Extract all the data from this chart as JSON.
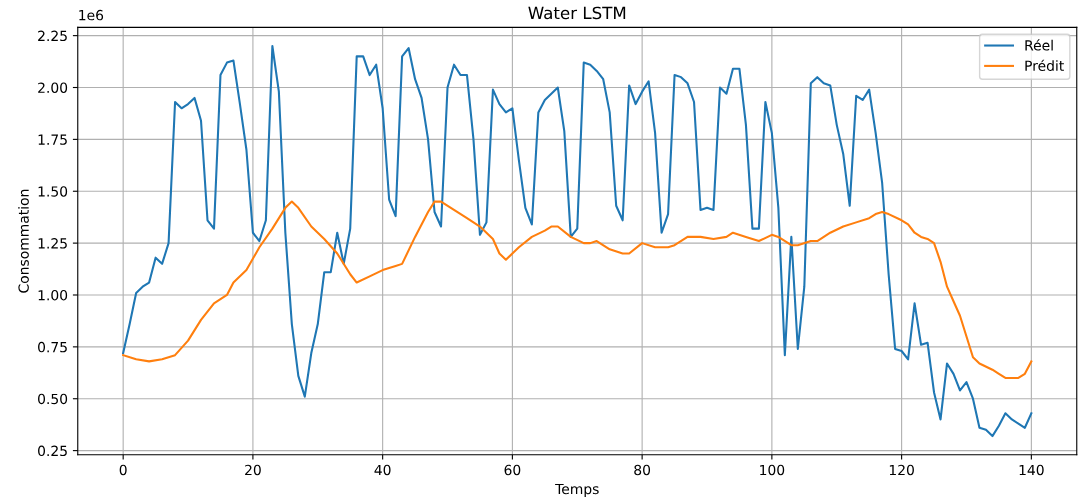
{
  "chart_data": {
    "type": "line",
    "title": "Water LSTM",
    "xlabel": "Temps",
    "ylabel": "Consommation",
    "annotations": [
      "1e6"
    ],
    "xlim": [
      -7,
      147
    ],
    "xticks": [
      0,
      20,
      40,
      60,
      80,
      100,
      120,
      140
    ],
    "ylim": [
      0.23,
      2.29
    ],
    "yticks": [
      {
        "value": 0.25,
        "label": "0.25"
      },
      {
        "value": 0.5,
        "label": "0.50"
      },
      {
        "value": 0.75,
        "label": "0.75"
      },
      {
        "value": 1.0,
        "label": "1.00"
      },
      {
        "value": 1.25,
        "label": "1.25"
      },
      {
        "value": 1.5,
        "label": "1.50"
      },
      {
        "value": 1.75,
        "label": "1.75"
      },
      {
        "value": 2.0,
        "label": "2.00"
      },
      {
        "value": 2.25,
        "label": "2.25"
      }
    ],
    "grid": true,
    "legend": "top right",
    "marker": "none",
    "line_style": "solid",
    "series": [
      {
        "name": "Réel",
        "color": "#1f77b4",
        "x": [
          0,
          1,
          2,
          3,
          4,
          5,
          6,
          7,
          8,
          9,
          10,
          11,
          12,
          13,
          14,
          15,
          16,
          17,
          18,
          19,
          20,
          21,
          22,
          23,
          24,
          25,
          26,
          27,
          28,
          29,
          30,
          31,
          32,
          33,
          34,
          35,
          36,
          37,
          38,
          39,
          40,
          41,
          42,
          43,
          44,
          45,
          46,
          47,
          48,
          49,
          50,
          51,
          52,
          53,
          54,
          55,
          56,
          57,
          58,
          59,
          60,
          61,
          62,
          63,
          64,
          65,
          66,
          67,
          68,
          69,
          70,
          71,
          72,
          73,
          74,
          75,
          76,
          77,
          78,
          79,
          80,
          81,
          82,
          83,
          84,
          85,
          86,
          87,
          88,
          89,
          90,
          91,
          92,
          93,
          94,
          95,
          96,
          97,
          98,
          99,
          100,
          101,
          102,
          103,
          104,
          105,
          106,
          107,
          108,
          109,
          110,
          111,
          112,
          113,
          114,
          115,
          116,
          117,
          118,
          119,
          120,
          121,
          122,
          123,
          124,
          125,
          126,
          127,
          128,
          129,
          130,
          131,
          132,
          133,
          134,
          135,
          136,
          137,
          138,
          139,
          140
        ],
        "values": [
          0.72,
          0.86,
          1.01,
          1.04,
          1.06,
          1.18,
          1.15,
          1.25,
          1.93,
          1.9,
          1.92,
          1.95,
          1.84,
          1.36,
          1.32,
          2.06,
          2.12,
          2.13,
          1.92,
          1.7,
          1.3,
          1.26,
          1.36,
          2.2,
          1.98,
          1.3,
          0.86,
          0.61,
          0.51,
          0.72,
          0.86,
          1.11,
          1.11,
          1.3,
          1.15,
          1.32,
          2.15,
          2.15,
          2.06,
          2.11,
          1.9,
          1.46,
          1.38,
          2.15,
          2.19,
          2.04,
          1.95,
          1.75,
          1.4,
          1.33,
          2.0,
          2.11,
          2.06,
          2.06,
          1.75,
          1.29,
          1.35,
          1.99,
          1.92,
          1.88,
          1.9,
          1.65,
          1.42,
          1.34,
          1.88,
          1.94,
          1.97,
          2.0,
          1.79,
          1.28,
          1.32,
          2.12,
          2.11,
          2.08,
          2.04,
          1.88,
          1.43,
          1.36,
          2.01,
          1.92,
          1.98,
          2.03,
          1.78,
          1.3,
          1.39,
          2.06,
          2.05,
          2.02,
          1.93,
          1.41,
          1.42,
          1.41,
          2.0,
          1.97,
          2.09,
          2.09,
          1.82,
          1.32,
          1.32,
          1.93,
          1.78,
          1.42,
          0.71,
          1.28,
          0.74,
          1.04,
          2.02,
          2.05,
          2.02,
          2.01,
          1.82,
          1.68,
          1.43,
          1.96,
          1.94,
          1.99,
          1.78,
          1.54,
          1.1,
          0.74,
          0.73,
          0.69,
          0.96,
          0.76,
          0.77,
          0.53,
          0.4,
          0.67,
          0.62,
          0.54,
          0.58,
          0.5,
          0.36,
          0.35,
          0.32,
          0.37,
          0.43,
          0.4,
          0.38,
          0.36,
          0.43
        ]
      },
      {
        "name": "Prédit",
        "color": "#ff7f0e",
        "x": [
          0,
          2,
          4,
          6,
          8,
          10,
          12,
          14,
          16,
          17,
          19,
          21,
          23,
          25,
          26,
          27,
          29,
          31,
          33,
          35,
          36,
          38,
          40,
          42,
          43,
          45,
          47,
          48,
          49,
          51,
          53,
          55,
          57,
          58,
          59,
          61,
          63,
          65,
          66,
          67,
          69,
          71,
          72,
          73,
          75,
          77,
          78,
          80,
          82,
          84,
          85,
          87,
          89,
          91,
          93,
          94,
          96,
          98,
          100,
          101,
          103,
          104,
          106,
          107,
          109,
          111,
          113,
          115,
          116,
          117,
          118,
          120,
          121,
          122,
          123,
          124,
          125,
          126,
          127,
          128,
          129,
          130,
          131,
          132,
          134,
          135,
          136,
          138,
          139,
          140
        ],
        "values": [
          0.71,
          0.69,
          0.68,
          0.69,
          0.71,
          0.78,
          0.88,
          0.96,
          1.0,
          1.06,
          1.12,
          1.23,
          1.32,
          1.42,
          1.45,
          1.42,
          1.33,
          1.27,
          1.2,
          1.1,
          1.06,
          1.09,
          1.12,
          1.14,
          1.15,
          1.28,
          1.4,
          1.45,
          1.45,
          1.41,
          1.37,
          1.33,
          1.27,
          1.2,
          1.17,
          1.23,
          1.28,
          1.31,
          1.33,
          1.33,
          1.28,
          1.25,
          1.25,
          1.26,
          1.22,
          1.2,
          1.2,
          1.25,
          1.23,
          1.23,
          1.24,
          1.28,
          1.28,
          1.27,
          1.28,
          1.3,
          1.28,
          1.26,
          1.29,
          1.28,
          1.24,
          1.24,
          1.26,
          1.26,
          1.3,
          1.33,
          1.35,
          1.37,
          1.39,
          1.4,
          1.39,
          1.36,
          1.34,
          1.3,
          1.28,
          1.27,
          1.25,
          1.16,
          1.04,
          0.97,
          0.9,
          0.8,
          0.7,
          0.67,
          0.64,
          0.62,
          0.6,
          0.6,
          0.62,
          0.68
        ]
      }
    ]
  }
}
